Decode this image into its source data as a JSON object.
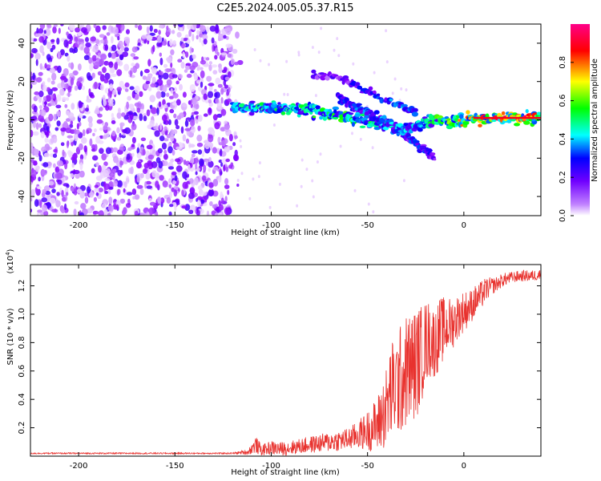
{
  "title": "C2E5.2024.005.05.37.R15",
  "colors": {
    "snr_line": "#e8322e",
    "background": "#ffffff",
    "frame": "#000000"
  },
  "chart_data": [
    {
      "type": "heatmap",
      "name": "spectrogram",
      "xlabel": "Height of straight line (km)",
      "ylabel": "Frequency (Hz)",
      "xlim": [
        -225,
        40
      ],
      "ylim": [
        -50,
        50
      ],
      "xticks": [
        -200,
        -150,
        -100,
        -50,
        0
      ],
      "yticks": [
        -40,
        -20,
        0,
        20,
        40
      ],
      "colorbar": {
        "label": "Normalized spectral amplitude",
        "range": [
          0.0,
          1.0
        ],
        "ticks": [
          "0.0",
          "0.2",
          "0.4",
          "0.6",
          "0.8"
        ],
        "tick_values": [
          0.0,
          0.2,
          0.4,
          0.6,
          0.8
        ],
        "colormap": [
          "#ffffff",
          "#8800ff",
          "#0000ff",
          "#00ffff",
          "#00ff00",
          "#ffff00",
          "#ff0000",
          "#ff0088"
        ]
      },
      "noise_region_x": [
        -225,
        -120
      ],
      "main_track": {
        "x": [
          -120,
          -110,
          -100,
          -90,
          -80,
          -70,
          -60,
          -50,
          -40,
          -30,
          -20,
          -10,
          0,
          10,
          20,
          40
        ],
        "freq": [
          7,
          6,
          6,
          6,
          5,
          3,
          1,
          -1,
          -3,
          -5,
          -1,
          -1,
          0,
          1,
          1,
          1
        ],
        "amplitude": [
          0.45,
          0.5,
          0.5,
          0.5,
          0.55,
          0.55,
          0.6,
          0.5,
          0.45,
          0.4,
          0.5,
          0.6,
          0.75,
          0.85,
          0.9,
          0.9
        ]
      },
      "secondary_track": {
        "x": [
          -65,
          -55,
          -45,
          -35,
          -30,
          -25,
          -20,
          -15
        ],
        "freq": [
          12,
          6,
          1,
          -4,
          -8,
          -12,
          -16,
          -20
        ],
        "amplitude": [
          0.3,
          0.35,
          0.4,
          0.35,
          0.35,
          0.3,
          0.3,
          0.25
        ]
      },
      "upper_arc": {
        "x": [
          -78,
          -70,
          -60,
          -50,
          -40,
          -35,
          -30,
          -25
        ],
        "freq": [
          24,
          23,
          20,
          15,
          10,
          8,
          6,
          4
        ],
        "amplitude": [
          0.2,
          0.22,
          0.25,
          0.3,
          0.35,
          0.4,
          0.4,
          0.4
        ]
      }
    },
    {
      "type": "line",
      "name": "snr",
      "xlabel": "Height of straight line (km)",
      "ylabel": "SNR (10 * v/v)",
      "y_exponent_label": "(x10",
      "y_exponent_power": "4",
      "y_exponent_close": ")",
      "xlim": [
        -225,
        40
      ],
      "ylim": [
        0.0,
        1.35
      ],
      "xticks": [
        -200,
        -150,
        -100,
        -50,
        0
      ],
      "yticks": [
        0.2,
        0.4,
        0.6,
        0.8,
        1.0,
        1.2
      ],
      "ytick_labels": [
        "0.2",
        "0.4",
        "0.6",
        "0.8",
        "1.0",
        "1.2"
      ],
      "series": [
        {
          "name": "SNR",
          "x": [
            -225,
            -200,
            -150,
            -120,
            -112,
            -108,
            -105,
            -100,
            -95,
            -90,
            -80,
            -70,
            -60,
            -55,
            -50,
            -45,
            -40,
            -38,
            -35,
            -32,
            -30,
            -28,
            -25,
            -22,
            -20,
            -18,
            -15,
            -12,
            -10,
            -8,
            -5,
            -2,
            0,
            3,
            5,
            8,
            10,
            12,
            15,
            18,
            20,
            25,
            30,
            35,
            40
          ],
          "mean": [
            0.02,
            0.02,
            0.02,
            0.02,
            0.03,
            0.08,
            0.04,
            0.06,
            0.05,
            0.06,
            0.08,
            0.1,
            0.12,
            0.15,
            0.18,
            0.22,
            0.35,
            0.45,
            0.5,
            0.55,
            0.6,
            0.62,
            0.65,
            0.72,
            0.8,
            0.82,
            0.8,
            0.88,
            0.9,
            0.92,
            0.95,
            1.0,
            1.02,
            1.05,
            1.08,
            1.12,
            1.15,
            1.18,
            1.2,
            1.22,
            1.24,
            1.26,
            1.27,
            1.27,
            1.28
          ],
          "spread": [
            0.005,
            0.005,
            0.005,
            0.005,
            0.02,
            0.06,
            0.04,
            0.05,
            0.05,
            0.05,
            0.06,
            0.07,
            0.08,
            0.1,
            0.14,
            0.2,
            0.3,
            0.35,
            0.38,
            0.4,
            0.4,
            0.4,
            0.4,
            0.35,
            0.3,
            0.28,
            0.25,
            0.25,
            0.22,
            0.2,
            0.18,
            0.15,
            0.15,
            0.12,
            0.12,
            0.1,
            0.1,
            0.08,
            0.06,
            0.05,
            0.05,
            0.04,
            0.04,
            0.04,
            0.04
          ]
        }
      ]
    }
  ]
}
